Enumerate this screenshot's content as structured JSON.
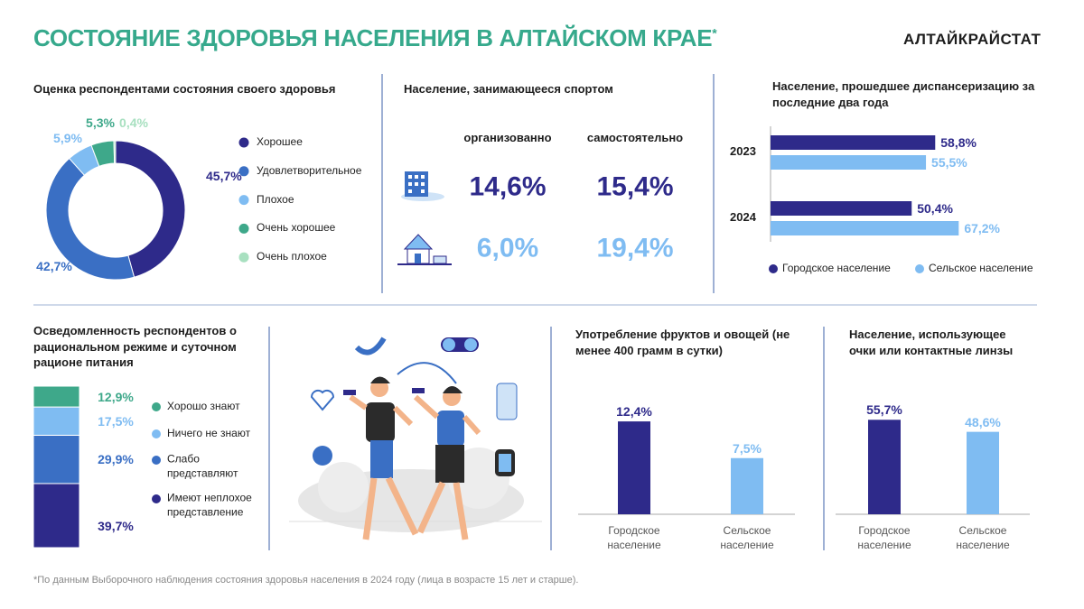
{
  "header": {
    "title": "СОСТОЯНИЕ ЗДОРОВЬЯ НАСЕЛЕНИЯ В АЛТАЙСКОМ КРАЕ",
    "title_note": "*",
    "brand": "АЛТАЙКРАЙСТАТ"
  },
  "sport": {
    "title": "Население, занимающееся спортом",
    "columns": [
      "организованно",
      "самостоятельно"
    ],
    "rows": [
      {
        "color": "#2e2a8a",
        "values": [
          14.6,
          15.4
        ],
        "value_labels": [
          "14,6%",
          "15,4%"
        ]
      },
      {
        "color": "#7fbcf2",
        "values": [
          6.0,
          19.4
        ],
        "value_labels": [
          "6,0%",
          "19,4%"
        ]
      }
    ]
  },
  "chart_data": [
    {
      "type": "donut",
      "title": "Оценка респондентами состояния своего здоровья",
      "categories": [
        "Хорошее",
        "Удовлетворительное",
        "Плохое",
        "Очень хорошее",
        "Очень плохое"
      ],
      "values": [
        45.7,
        42.7,
        5.9,
        5.3,
        0.4
      ],
      "value_labels": [
        "45,7%",
        "42,7%",
        "5,9%",
        "5,3%",
        "0,4%"
      ],
      "colors": [
        "#2e2a8a",
        "#3a6fc4",
        "#7fbcf2",
        "#3ea88a",
        "#a8e0c0"
      ]
    },
    {
      "type": "hbar",
      "title": "Население, прошедшее диспансеризацию за последние два года",
      "categories": [
        "2023",
        "2024"
      ],
      "series": [
        {
          "name": "Городское население",
          "color": "#2e2a8a",
          "values": [
            58.8,
            50.4
          ],
          "value_labels": [
            "58,8%",
            "50,4%"
          ]
        },
        {
          "name": "Сельское население",
          "color": "#7fbcf2",
          "values": [
            55.5,
            67.2
          ],
          "value_labels": [
            "55,5%",
            "67,2%"
          ]
        }
      ]
    },
    {
      "type": "stacked",
      "title": "Осведомленность респондентов о рациональном режиме и суточном рационе питания",
      "categories": [
        "Хорошо знают",
        "Ничего не знают",
        "Слабо представляют",
        "Имеют неплохое представление"
      ],
      "values": [
        12.9,
        17.5,
        29.9,
        39.7
      ],
      "value_labels": [
        "12,9%",
        "17,5%",
        "29,9%",
        "39,7%"
      ],
      "colors": [
        "#3ea88a",
        "#7fbcf2",
        "#3a6fc4",
        "#2e2a8a"
      ]
    },
    {
      "type": "bar",
      "title": "Употребление фруктов и овощей (не менее 400 грамм в сутки)",
      "categories": [
        "Городское население",
        "Сельское население"
      ],
      "values": [
        12.4,
        7.5
      ],
      "value_labels": [
        "12,4%",
        "7,5%"
      ],
      "colors": [
        "#2e2a8a",
        "#7fbcf2"
      ]
    },
    {
      "type": "bar",
      "title": "Население, использующее очки или контактные линзы",
      "categories": [
        "Городское население",
        "Сельское население"
      ],
      "values": [
        55.7,
        48.6
      ],
      "value_labels": [
        "55,7%",
        "48,6%"
      ],
      "colors": [
        "#2e2a8a",
        "#7fbcf2"
      ]
    }
  ],
  "footnote": "*По данным Выборочного наблюдения состояния здоровья населения в 2024 году (лица в возрасте 15 лет и старше)."
}
